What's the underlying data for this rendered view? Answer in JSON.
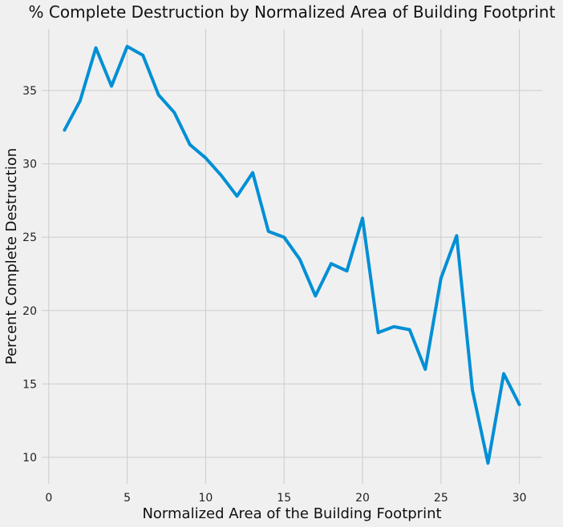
{
  "chart_data": {
    "type": "line",
    "title": "% Complete Destruction by Normalized Area of Building Footprint",
    "xlabel": "Normalized Area of the Building Footprint",
    "ylabel": "Percent Complete Destruction",
    "xlim": [
      -0.45,
      31.45
    ],
    "ylim": [
      8.2,
      39.2
    ],
    "xticks": [
      0,
      5,
      10,
      15,
      20,
      25,
      30
    ],
    "yticks": [
      10,
      15,
      20,
      25,
      30,
      35
    ],
    "grid": true,
    "color": "#008fd5",
    "x": [
      1,
      2,
      3,
      4,
      5,
      6,
      7,
      8,
      9,
      10,
      11,
      12,
      13,
      14,
      15,
      16,
      17,
      18,
      19,
      20,
      21,
      22,
      23,
      24,
      25,
      26,
      27,
      28,
      29,
      30
    ],
    "series": [
      {
        "values": [
          32.3,
          34.3,
          37.9,
          35.3,
          38.0,
          37.4,
          34.7,
          33.5,
          31.3,
          30.4,
          29.2,
          27.8,
          29.4,
          25.4,
          25.0,
          23.5,
          21.0,
          23.2,
          22.7,
          26.3,
          18.5,
          18.9,
          18.7,
          16.0,
          22.2,
          25.1,
          14.6,
          9.6,
          15.7,
          13.6
        ]
      }
    ]
  }
}
